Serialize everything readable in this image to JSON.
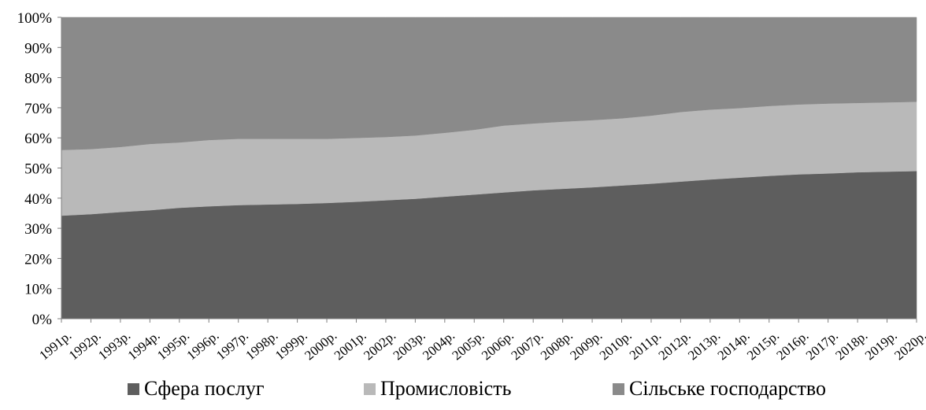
{
  "chart_data": {
    "type": "area",
    "stacked": true,
    "percent": true,
    "categories": [
      "1991р.",
      "1992р.",
      "1993р.",
      "1994р.",
      "1995р.",
      "1996р.",
      "1997р.",
      "1998р.",
      "1999р.",
      "2000р.",
      "2001р.",
      "2002р.",
      "2003р.",
      "2004р.",
      "2005р.",
      "2006р.",
      "2007р.",
      "2008р.",
      "2009р.",
      "2010р.",
      "2011р.",
      "2012р.",
      "2013р.",
      "2014р.",
      "2015р.",
      "2016р.",
      "2017р.",
      "2018р.",
      "2019р.",
      "2020р."
    ],
    "series": [
      {
        "name": "Сфера послуг",
        "color": "#5e5e5e",
        "values": [
          34.2,
          34.7,
          35.4,
          36.0,
          36.8,
          37.3,
          37.7,
          37.9,
          38.1,
          38.4,
          38.8,
          39.3,
          39.8,
          40.5,
          41.2,
          41.9,
          42.6,
          43.1,
          43.6,
          44.2,
          44.8,
          45.5,
          46.2,
          46.8,
          47.4,
          47.9,
          48.2,
          48.6,
          48.8,
          49.0
        ]
      },
      {
        "name": "Промисловість",
        "color": "#b9b9b9",
        "values": [
          21.8,
          21.6,
          21.6,
          22.0,
          21.7,
          22.0,
          22.0,
          21.8,
          21.6,
          21.3,
          21.2,
          21.0,
          21.0,
          21.2,
          21.5,
          22.2,
          22.2,
          22.3,
          22.3,
          22.3,
          22.6,
          23.1,
          23.2,
          23.1,
          23.2,
          23.2,
          23.2,
          23.0,
          23.0,
          23.0
        ]
      },
      {
        "name": "Сільське господарство",
        "color": "#8a8a8a",
        "values": [
          44.0,
          43.7,
          43.0,
          42.0,
          41.5,
          40.7,
          40.3,
          40.3,
          40.3,
          40.3,
          40.0,
          39.7,
          39.2,
          38.3,
          37.3,
          35.9,
          35.2,
          34.6,
          34.1,
          33.5,
          32.6,
          31.4,
          30.6,
          30.1,
          29.4,
          28.9,
          28.6,
          28.4,
          28.2,
          28.0
        ]
      }
    ],
    "y_ticks": [
      "0%",
      "10%",
      "20%",
      "30%",
      "40%",
      "50%",
      "60%",
      "70%",
      "80%",
      "90%",
      "100%"
    ],
    "ylim": [
      0,
      100
    ],
    "grid": false,
    "legend_position": "bottom"
  }
}
